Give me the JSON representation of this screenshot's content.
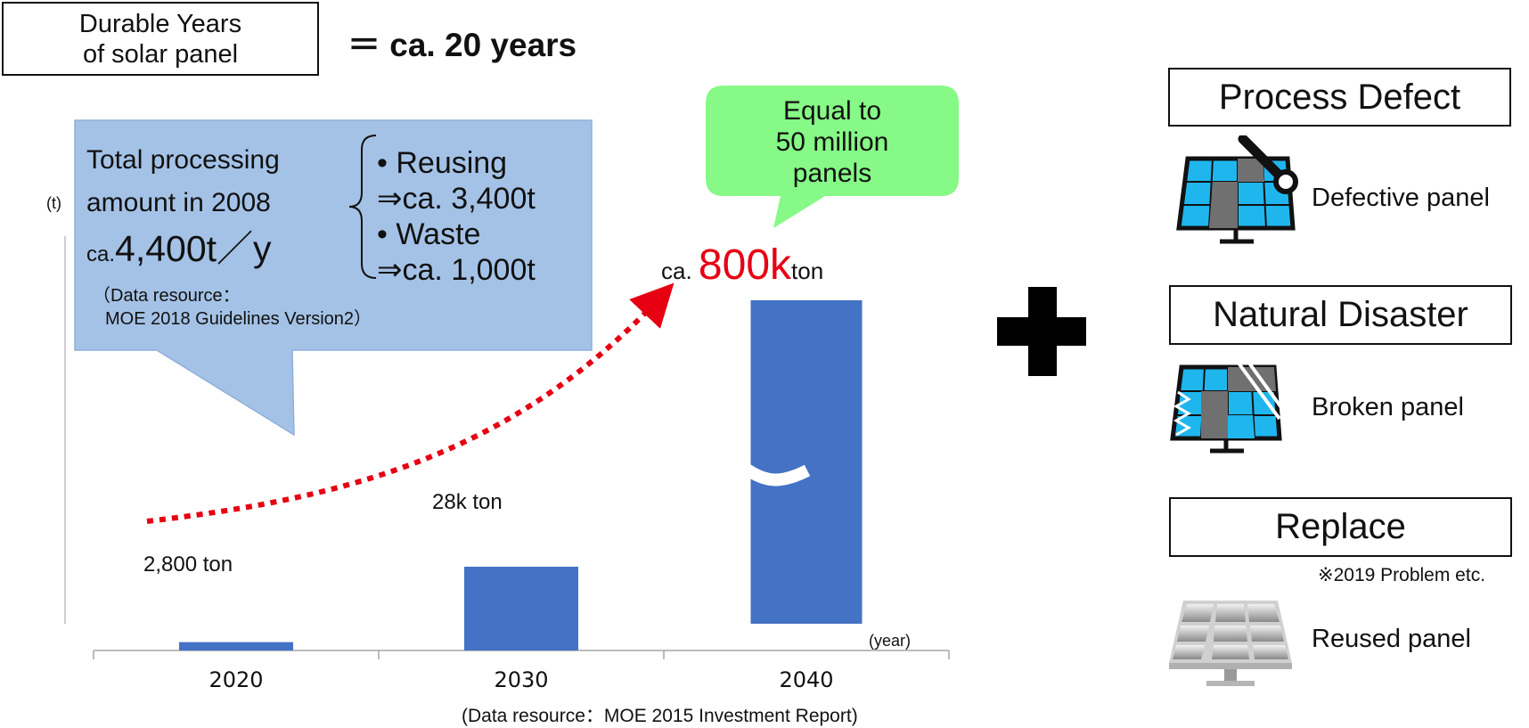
{
  "durable": {
    "line1": "Durable Years",
    "line2": "of solar panel",
    "value": "＝ ca. 20 years"
  },
  "info_callout": {
    "line1": "Total processing",
    "line2": "amount in 2008",
    "amount_prefix": "ca.",
    "amount": "4,400t／y",
    "reuse_label": "• Reusing",
    "reuse_value": "⇒ca. 3,400t",
    "waste_label": "• Waste",
    "waste_value": "⇒ca. 1,000t",
    "source_line1": "（Data resource：",
    "source_line2": "MOE 2018 Guidelines Version2）",
    "fill": "#a4c2e6",
    "stroke": "#8fb0d8"
  },
  "green_callout": {
    "line1": "Equal to",
    "line2": "50 million",
    "line3": "panels",
    "fill": "#86f986"
  },
  "chart_data": {
    "type": "bar",
    "categories": [
      "2020",
      "2030",
      "2040"
    ],
    "values": [
      2800,
      28000,
      800000
    ],
    "bar_labels": [
      "2,800 ton",
      "28k ton",
      ""
    ],
    "peak_label": {
      "prefix": "ca.",
      "value": "800k",
      "suffix": "ton"
    },
    "ylabel": "(t)",
    "xlabel": "(year)",
    "axis_break": true,
    "bar_color": "#4472c4",
    "trend_arrow_color": "#e60012",
    "source": "(Data resource：MOE 2015 Investment Report)"
  },
  "plus_color": "#000000",
  "categories_right": [
    {
      "title": "Process Defect",
      "panel_label": "Defective panel",
      "icon": "wrench-panel-icon"
    },
    {
      "title": "Natural Disaster",
      "panel_label": "Broken panel",
      "icon": "broken-panel-icon"
    },
    {
      "title": "Replace",
      "panel_label": "Reused panel",
      "icon": "reused-panel-icon",
      "note": "※2019 Problem etc."
    }
  ],
  "colors": {
    "panel_cell": "#1fb6ee",
    "panel_dark": "#707070",
    "panel_frame": "#111111"
  }
}
